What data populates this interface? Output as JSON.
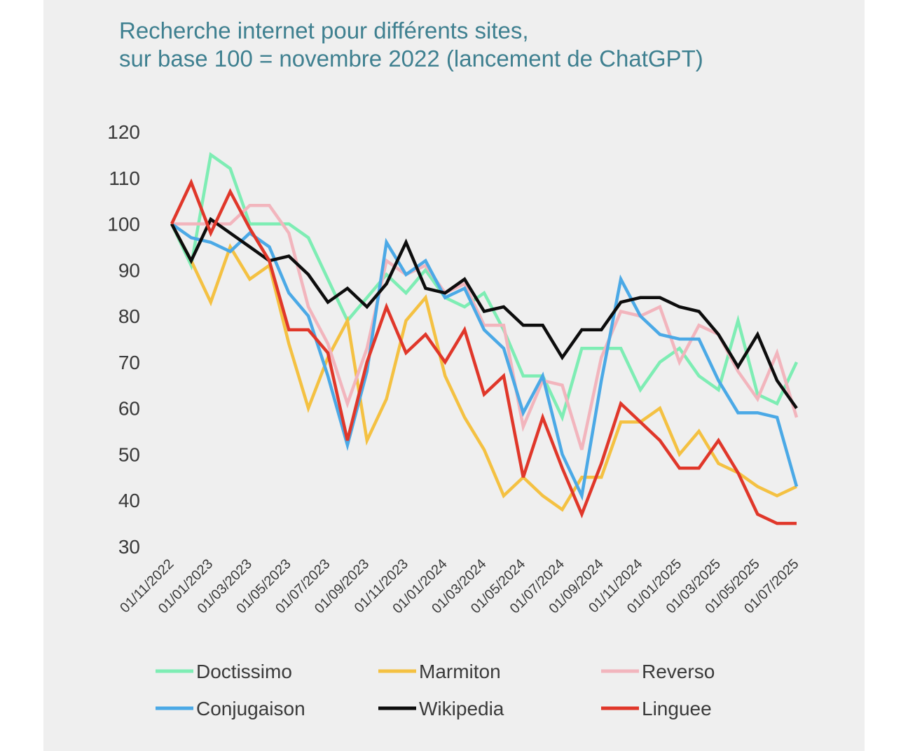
{
  "chart_data": {
    "type": "line",
    "title": [
      "Recherche internet pour différents sites,",
      "sur base 100 = novembre 2022 (lancement de ChatGPT)"
    ],
    "xlabel": "",
    "ylabel": "",
    "ylim": [
      30,
      120
    ],
    "yticks": [
      120,
      110,
      100,
      90,
      80,
      70,
      60,
      50,
      40,
      30
    ],
    "x_count": 33,
    "xtick_labels": [
      "01/11/2022",
      "01/01/2023",
      "01/03/2023",
      "01/05/2023",
      "01/07/2023",
      "01/09/2023",
      "01/11/2023",
      "01/01/2024",
      "01/03/2024",
      "01/05/2024",
      "01/07/2024",
      "01/09/2024",
      "01/11/2024",
      "01/01/2025",
      "01/03/2025",
      "01/05/2025",
      "01/07/2025"
    ],
    "legend_position": "bottom",
    "series": [
      {
        "name": "Doctissimo",
        "color": "#7eedb4",
        "values": [
          100,
          91,
          115,
          112,
          100,
          100,
          100,
          97,
          88,
          79,
          84,
          89,
          85,
          90,
          84,
          82,
          85,
          77,
          67,
          67,
          58,
          73,
          73,
          73,
          64,
          70,
          73,
          67,
          64,
          79,
          63,
          61,
          70
        ]
      },
      {
        "name": "Marmiton",
        "color": "#f4c142",
        "values": [
          100,
          92,
          83,
          95,
          88,
          91,
          74,
          60,
          71,
          79,
          53,
          62,
          79,
          84,
          67,
          58,
          51,
          41,
          45,
          41,
          38,
          45,
          45,
          57,
          57,
          60,
          50,
          55,
          48,
          46,
          43,
          41,
          43
        ]
      },
      {
        "name": "Reverso",
        "color": "#f2b5bd",
        "values": [
          100,
          100,
          100,
          100,
          104,
          104,
          98,
          82,
          74,
          61,
          73,
          92,
          89,
          91,
          85,
          87,
          78,
          78,
          56,
          66,
          65,
          51,
          71,
          81,
          80,
          82,
          70,
          78,
          76,
          68,
          62,
          72,
          58
        ]
      },
      {
        "name": "Conjugaison",
        "color": "#4ba9e6",
        "values": [
          100,
          97,
          96,
          94,
          98,
          95,
          85,
          80,
          67,
          52,
          68,
          96,
          89,
          92,
          84,
          86,
          77,
          73,
          59,
          67,
          50,
          41,
          66,
          88,
          80,
          76,
          75,
          75,
          66,
          59,
          59,
          58,
          43
        ]
      },
      {
        "name": "Wikipedia",
        "color": "#0d0d0d",
        "values": [
          100,
          92,
          101,
          98,
          95,
          92,
          93,
          89,
          83,
          86,
          82,
          87,
          96,
          86,
          85,
          88,
          81,
          82,
          78,
          78,
          71,
          77,
          77,
          83,
          84,
          84,
          82,
          81,
          76,
          69,
          76,
          66,
          60
        ]
      },
      {
        "name": "Linguee",
        "color": "#e0372a",
        "values": [
          100,
          109,
          98,
          107,
          99,
          92,
          77,
          77,
          72,
          53,
          70,
          82,
          72,
          76,
          70,
          77,
          63,
          67,
          45,
          58,
          47,
          37,
          48,
          61,
          57,
          53,
          47,
          47,
          53,
          46,
          37,
          35,
          35
        ]
      }
    ]
  }
}
